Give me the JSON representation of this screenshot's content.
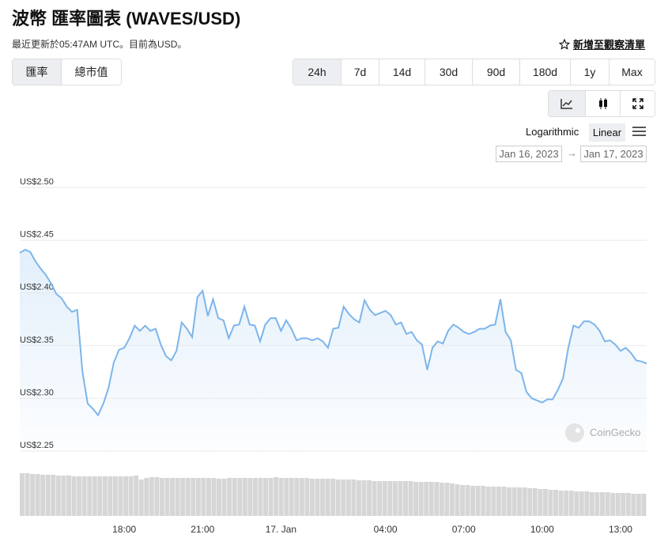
{
  "header": {
    "title": "波幣 匯率圖表 (WAVES/USD)",
    "subtitle": "最近更新於05:47AM UTC。目前為USD。",
    "watchlist": "新增至觀察清單"
  },
  "tabs": [
    "匯率",
    "總市值"
  ],
  "active_tab": 0,
  "ranges": [
    "24h",
    "7d",
    "14d",
    "30d",
    "90d",
    "180d",
    "1y",
    "Max"
  ],
  "active_range": 0,
  "scales": [
    "Logarithmic",
    "Linear"
  ],
  "active_scale": 1,
  "date_from": "Jan 16, 2023",
  "date_to": "Jan 17, 2023",
  "watermark": "CoinGecko",
  "chart_data": {
    "type": "line",
    "color": "#7cb5ec",
    "grid": true,
    "categories": [
      null,
      null,
      null,
      null,
      null,
      null,
      null,
      null,
      null,
      null,
      null,
      null,
      null,
      null,
      null,
      null,
      null,
      null,
      null,
      null,
      "18:00",
      null,
      null,
      null,
      null,
      null,
      null,
      null,
      null,
      null,
      null,
      null,
      null,
      null,
      null,
      "21:00",
      null,
      null,
      null,
      null,
      null,
      null,
      null,
      null,
      null,
      null,
      null,
      null,
      null,
      null,
      "17. Jan",
      null,
      null,
      null,
      null,
      null,
      null,
      null,
      null,
      null,
      null,
      null,
      null,
      null,
      null,
      null,
      null,
      null,
      null,
      null,
      "04:00",
      null,
      null,
      null,
      null,
      null,
      null,
      null,
      null,
      null,
      null,
      null,
      null,
      null,
      null,
      "07:00",
      null,
      null,
      null,
      null,
      null,
      null,
      null,
      null,
      null,
      null,
      null,
      null,
      null,
      null,
      "10:00",
      null,
      null,
      null,
      null,
      null,
      null,
      null,
      null,
      null,
      null,
      null,
      null,
      null,
      null,
      "13:00",
      null,
      null,
      null,
      null,
      null
    ],
    "values": [
      2.438,
      2.441,
      2.439,
      2.43,
      2.423,
      2.417,
      2.409,
      2.399,
      2.395,
      2.387,
      2.382,
      2.384,
      2.325,
      2.295,
      2.29,
      2.284,
      2.295,
      2.31,
      2.334,
      2.346,
      2.348,
      2.357,
      2.369,
      2.364,
      2.369,
      2.364,
      2.366,
      2.351,
      2.34,
      2.336,
      2.345,
      2.372,
      2.366,
      2.358,
      2.396,
      2.402,
      2.378,
      2.394,
      2.376,
      2.374,
      2.357,
      2.369,
      2.37,
      2.387,
      2.37,
      2.369,
      2.354,
      2.37,
      2.376,
      2.376,
      2.364,
      2.374,
      2.366,
      2.355,
      2.357,
      2.357,
      2.355,
      2.357,
      2.354,
      2.348,
      2.366,
      2.367,
      2.387,
      2.38,
      2.375,
      2.372,
      2.393,
      2.384,
      2.379,
      2.381,
      2.383,
      2.379,
      2.37,
      2.372,
      2.361,
      2.363,
      2.355,
      2.351,
      2.327,
      2.348,
      2.354,
      2.352,
      2.364,
      2.37,
      2.367,
      2.363,
      2.361,
      2.363,
      2.366,
      2.366,
      2.369,
      2.37,
      2.394,
      2.363,
      2.355,
      2.327,
      2.324,
      2.306,
      2.3,
      2.298,
      2.296,
      2.299,
      2.299,
      2.308,
      2.319,
      2.348,
      2.369,
      2.367,
      2.373,
      2.373,
      2.37,
      2.364,
      2.354,
      2.355,
      2.351,
      2.345,
      2.348,
      2.343,
      2.336,
      2.335,
      2.333
    ],
    "ylim": [
      2.25,
      2.5
    ],
    "yticks": [
      {
        "value": 2.25,
        "label": "US$2.25"
      },
      {
        "value": 2.3,
        "label": "US$2.30"
      },
      {
        "value": 2.35,
        "label": "US$2.35"
      },
      {
        "value": 2.4,
        "label": "US$2.40"
      },
      {
        "value": 2.45,
        "label": "US$2.45"
      },
      {
        "value": 2.5,
        "label": "US$2.50"
      }
    ],
    "volume": {
      "color": "#d6d6d6",
      "ylim": [
        0,
        60
      ],
      "values": [
        54,
        54,
        53,
        53,
        52,
        52,
        52,
        51,
        51,
        51,
        50,
        50,
        50,
        50,
        50,
        50,
        50,
        50,
        50,
        50,
        50,
        50,
        51,
        46,
        48,
        49,
        49,
        48,
        48,
        48,
        48,
        48,
        48,
        48,
        48,
        48,
        48,
        48,
        47,
        47,
        48,
        48,
        48,
        48,
        48,
        48,
        48,
        48,
        48,
        49,
        48,
        48,
        48,
        48,
        48,
        48,
        47,
        47,
        47,
        47,
        47,
        46,
        46,
        46,
        46,
        45,
        45,
        45,
        44,
        44,
        44,
        44,
        44,
        44,
        44,
        44,
        43,
        43,
        43,
        43,
        43,
        42,
        42,
        41,
        40,
        39,
        39,
        38,
        38,
        38,
        37,
        37,
        37,
        37,
        36,
        36,
        36,
        36,
        35,
        35,
        34,
        34,
        33,
        33,
        32,
        32,
        32,
        31,
        31,
        31,
        30,
        30,
        30,
        30,
        29,
        29,
        29,
        29,
        28,
        28,
        28
      ]
    }
  }
}
